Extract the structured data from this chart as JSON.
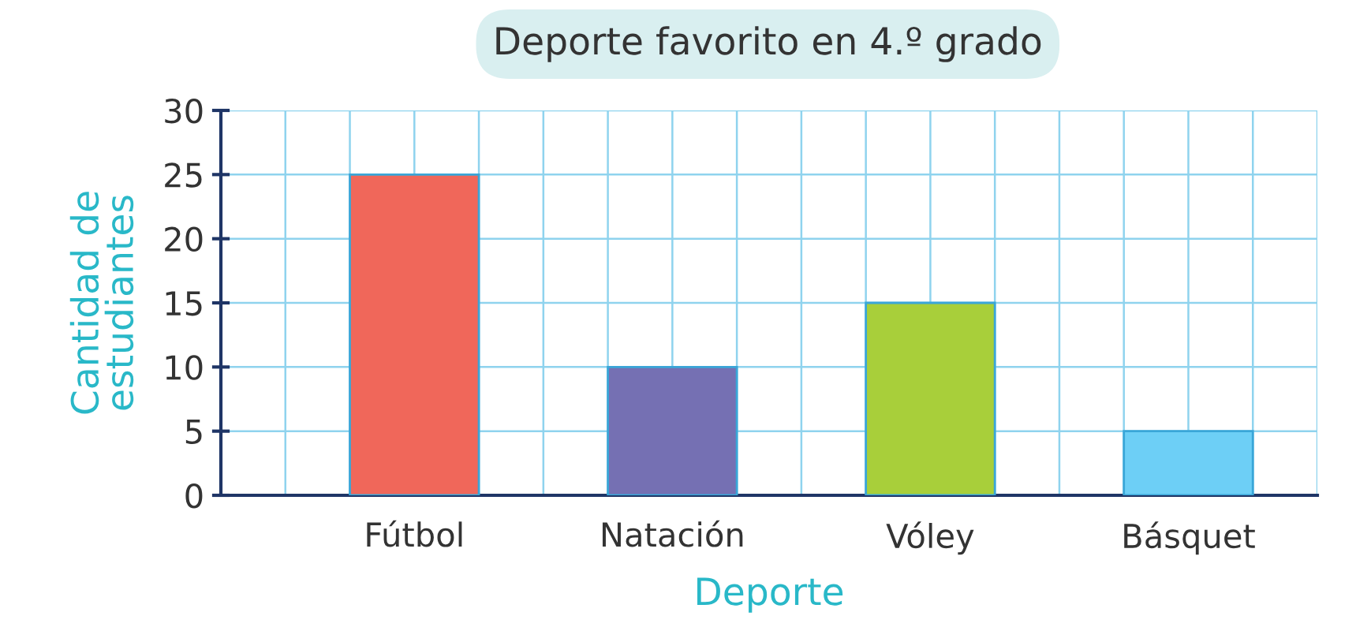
{
  "chart_data": {
    "type": "bar",
    "title": "Deporte favorito en 4.º grado",
    "xlabel": "Deporte",
    "ylabel": "Cantidad de\nestudiantes",
    "categories": [
      "Fútbol",
      "Natación",
      "Vóley",
      "Básquet"
    ],
    "values": [
      25,
      10,
      15,
      5
    ],
    "colors": [
      "#f0675a",
      "#7570b3",
      "#a8cf3a",
      "#6dcff6"
    ],
    "ylim": [
      0,
      30
    ],
    "yticks": [
      0,
      5,
      10,
      15,
      20,
      25,
      30
    ],
    "grid": true
  }
}
